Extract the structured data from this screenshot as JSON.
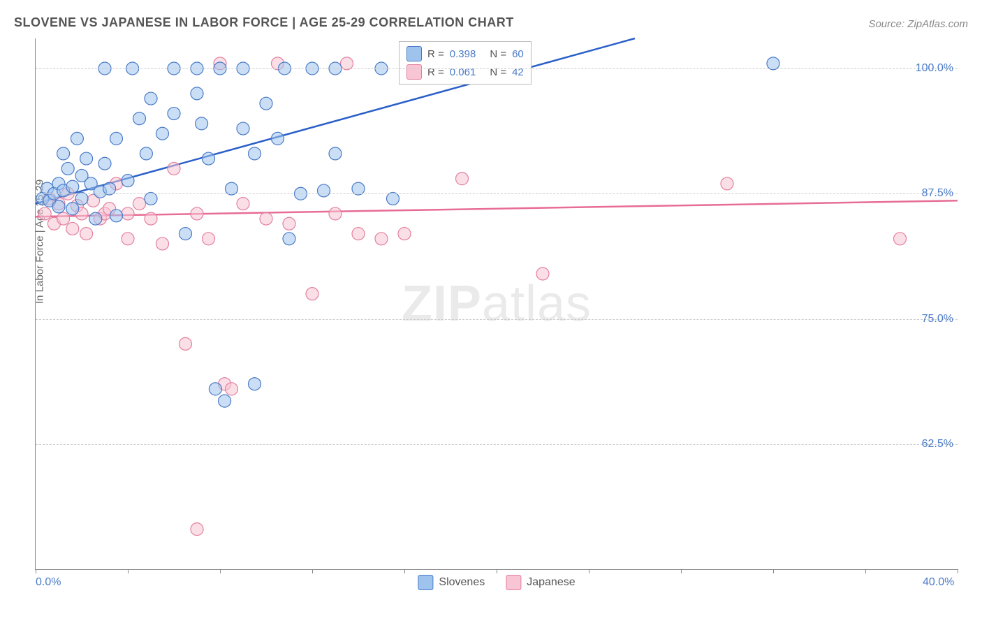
{
  "title": "SLOVENE VS JAPANESE IN LABOR FORCE | AGE 25-29 CORRELATION CHART",
  "source": "Source: ZipAtlas.com",
  "ylabel": "In Labor Force | Age 25-29",
  "watermark_a": "ZIP",
  "watermark_b": "atlas",
  "chart": {
    "type": "scatter",
    "xlim": [
      0,
      40
    ],
    "ylim": [
      50,
      103
    ],
    "xtick_labels": {
      "0": "0.0%",
      "40": "40.0%"
    },
    "xtick_positions": [
      0,
      4,
      8,
      12,
      16,
      20,
      24,
      28,
      32,
      36,
      40
    ],
    "ytick_labels": {
      "62.5": "62.5%",
      "75": "75.0%",
      "87.5": "87.5%",
      "100": "100.0%"
    },
    "gridlines_y": [
      62.5,
      75,
      87.5,
      100
    ],
    "background_color": "#ffffff",
    "grid_color": "#cccccc",
    "axis_color": "#888888",
    "marker_radius": 9,
    "marker_opacity": 0.55,
    "line_width": 2.5,
    "series": [
      {
        "name": "Slovenes",
        "fill": "#9ec4ee",
        "stroke": "#4a7ac7",
        "line_color": "#2a5fc9",
        "R": "0.398",
        "N": "60",
        "trend": {
          "x1": 0,
          "y1": 86.5,
          "x2": 26,
          "y2": 103
        },
        "points": [
          [
            0.3,
            87.0
          ],
          [
            0.5,
            88.0
          ],
          [
            0.6,
            86.8
          ],
          [
            0.8,
            87.5
          ],
          [
            1.0,
            86.2
          ],
          [
            1.0,
            88.5
          ],
          [
            1.2,
            91.5
          ],
          [
            1.2,
            87.8
          ],
          [
            1.4,
            90.0
          ],
          [
            1.6,
            86.0
          ],
          [
            1.6,
            88.2
          ],
          [
            1.8,
            93.0
          ],
          [
            2.0,
            87.0
          ],
          [
            2.0,
            89.3
          ],
          [
            2.2,
            91.0
          ],
          [
            2.4,
            88.5
          ],
          [
            2.6,
            85.0
          ],
          [
            2.8,
            87.7
          ],
          [
            3.0,
            100.0
          ],
          [
            3.0,
            90.5
          ],
          [
            3.2,
            88.0
          ],
          [
            3.5,
            85.3
          ],
          [
            3.5,
            93.0
          ],
          [
            4.0,
            88.8
          ],
          [
            4.2,
            100.0
          ],
          [
            4.5,
            95.0
          ],
          [
            4.8,
            91.5
          ],
          [
            5.0,
            97.0
          ],
          [
            5.0,
            87.0
          ],
          [
            5.5,
            93.5
          ],
          [
            6.0,
            100.0
          ],
          [
            6.0,
            95.5
          ],
          [
            6.5,
            83.5
          ],
          [
            7.0,
            100.0
          ],
          [
            7.0,
            97.5
          ],
          [
            7.2,
            94.5
          ],
          [
            7.5,
            91.0
          ],
          [
            7.8,
            68.0
          ],
          [
            8.0,
            100.0
          ],
          [
            8.2,
            66.8
          ],
          [
            8.5,
            88.0
          ],
          [
            9.0,
            100.0
          ],
          [
            9.0,
            94.0
          ],
          [
            9.5,
            91.5
          ],
          [
            9.5,
            68.5
          ],
          [
            10.0,
            96.5
          ],
          [
            10.5,
            93.0
          ],
          [
            10.8,
            100.0
          ],
          [
            11.0,
            83.0
          ],
          [
            11.5,
            87.5
          ],
          [
            12.0,
            100.0
          ],
          [
            12.5,
            87.8
          ],
          [
            13.0,
            100.0
          ],
          [
            13.0,
            91.5
          ],
          [
            14.0,
            88.0
          ],
          [
            15.0,
            100.0
          ],
          [
            15.5,
            87.0
          ],
          [
            17.0,
            100.0
          ],
          [
            19.0,
            100.0
          ],
          [
            32.0,
            100.5
          ]
        ]
      },
      {
        "name": "Japanese",
        "fill": "#f7c5d3",
        "stroke": "#e37fa0",
        "line_color": "#e76c96",
        "R": "0.061",
        "N": "42",
        "trend": {
          "x1": 0,
          "y1": 85.2,
          "x2": 40,
          "y2": 86.8
        },
        "points": [
          [
            0.4,
            85.5
          ],
          [
            0.6,
            87.0
          ],
          [
            0.8,
            84.5
          ],
          [
            1.0,
            86.5
          ],
          [
            1.2,
            85.0
          ],
          [
            1.4,
            87.5
          ],
          [
            1.6,
            84.0
          ],
          [
            1.8,
            86.3
          ],
          [
            2.0,
            85.5
          ],
          [
            2.2,
            83.5
          ],
          [
            2.5,
            86.8
          ],
          [
            2.8,
            85.0
          ],
          [
            3.0,
            85.5
          ],
          [
            3.2,
            86.0
          ],
          [
            3.5,
            88.5
          ],
          [
            4.0,
            83.0
          ],
          [
            4.0,
            85.5
          ],
          [
            4.5,
            86.5
          ],
          [
            5.0,
            85.0
          ],
          [
            5.5,
            82.5
          ],
          [
            6.0,
            90.0
          ],
          [
            6.5,
            72.5
          ],
          [
            7.0,
            85.5
          ],
          [
            7.0,
            54.0
          ],
          [
            7.5,
            83.0
          ],
          [
            8.0,
            100.5
          ],
          [
            8.2,
            68.5
          ],
          [
            8.5,
            68.0
          ],
          [
            9.0,
            86.5
          ],
          [
            10.0,
            85.0
          ],
          [
            10.5,
            100.5
          ],
          [
            11.0,
            84.5
          ],
          [
            12.0,
            77.5
          ],
          [
            13.0,
            85.5
          ],
          [
            13.5,
            100.5
          ],
          [
            14.0,
            83.5
          ],
          [
            15.0,
            83.0
          ],
          [
            16.0,
            83.5
          ],
          [
            18.5,
            89.0
          ],
          [
            22.0,
            79.5
          ],
          [
            30.0,
            88.5
          ],
          [
            37.5,
            83.0
          ]
        ]
      }
    ]
  },
  "legend_top": {
    "rows": [
      {
        "swatch_fill": "#9ec4ee",
        "swatch_stroke": "#4a7ac7",
        "r_label": "R = ",
        "r_val": "0.398",
        "n_label": "N = ",
        "n_val": "60"
      },
      {
        "swatch_fill": "#f7c5d3",
        "swatch_stroke": "#e37fa0",
        "r_label": "R = ",
        "r_val": "0.061",
        "n_label": "N = ",
        "n_val": "42"
      }
    ]
  },
  "legend_bottom": {
    "items": [
      {
        "swatch_fill": "#9ec4ee",
        "swatch_stroke": "#4a7ac7",
        "label": "Slovenes"
      },
      {
        "swatch_fill": "#f7c5d3",
        "swatch_stroke": "#e37fa0",
        "label": "Japanese"
      }
    ]
  }
}
